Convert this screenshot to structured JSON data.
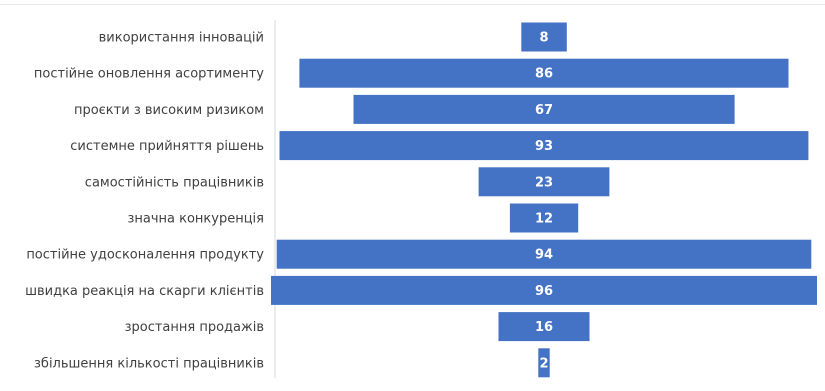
{
  "chart_data": {
    "type": "bar",
    "orientation": "horizontal",
    "style": "centered-funnel",
    "categories": [
      "використання інновацій",
      "постійне оновлення асортименту",
      "проєкти з високим ризиком",
      "системне прийняття рішень",
      "самостійність працівників",
      "значна конкуренція",
      "постійне удосконалення продукту",
      "швидка реакція на скарги клієнтів",
      "зростання продажів",
      "збільшення кількості працівників"
    ],
    "values": [
      8,
      86,
      67,
      93,
      23,
      12,
      94,
      96,
      16,
      2
    ],
    "title": "",
    "xlabel": "",
    "ylabel": "",
    "xlim": [
      0,
      96
    ],
    "grid": false,
    "legend": "none",
    "bar_color": "#4472C4",
    "label_color": "#404040",
    "value_label_color": "#ffffff"
  }
}
